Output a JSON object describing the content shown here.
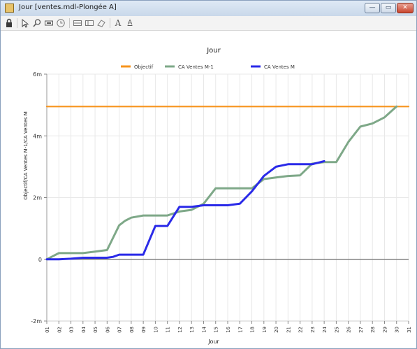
{
  "window": {
    "title": "Jour [ventes.mdl-Plongée A]",
    "controls": {
      "minimize": "—",
      "maximize": "▭",
      "close": "✕"
    }
  },
  "toolbar": {
    "icons": [
      "lock-icon",
      "pointer-icon",
      "zoom-icon",
      "fit-icon",
      "clock-icon",
      "table-icon",
      "list-icon",
      "eraser-icon",
      "font-a-icon",
      "font-a-small-icon"
    ],
    "font_a": "A",
    "font_a_small": "A"
  },
  "colors": {
    "objectif": "#f7941d",
    "ca_m1": "#7ea888",
    "ca_m": "#2a2ae8",
    "zero_line": "#808080",
    "grid": "#e8e8e8"
  },
  "chart_data": {
    "type": "line",
    "title": "Jour",
    "xlabel": "Jour",
    "ylabel": "Objectif/CA Ventes M-1/CA Ventes M",
    "x": [
      "01",
      "02",
      "03",
      "04",
      "05",
      "06",
      "07",
      "08",
      "09",
      "10",
      "11",
      "12",
      "13",
      "14",
      "15",
      "16",
      "17",
      "18",
      "19",
      "20",
      "21",
      "22",
      "23",
      "24",
      "25",
      "26",
      "27",
      "28",
      "29",
      "30",
      "31"
    ],
    "xlim": [
      1,
      31
    ],
    "ylim": [
      -2,
      6
    ],
    "y_ticks": [
      {
        "value": 6,
        "label": "6m"
      },
      {
        "value": 4,
        "label": "4m"
      },
      {
        "value": 2,
        "label": "2m"
      },
      {
        "value": 0,
        "label": "0"
      },
      {
        "value": -2,
        "label": "-2m"
      }
    ],
    "legend_position": "top",
    "grid": true,
    "series": [
      {
        "name": "Objectif",
        "color_key": "objectif",
        "x": [
          1,
          31
        ],
        "y": [
          4.95,
          4.95
        ]
      },
      {
        "name": "CA Ventes M-1",
        "color_key": "ca_m1",
        "x": [
          1,
          1.5,
          2,
          3,
          4,
          5,
          6,
          7,
          7.5,
          8,
          9,
          10,
          10.5,
          11,
          12,
          13,
          14,
          15,
          16,
          17,
          18,
          19,
          20,
          21,
          22,
          23,
          24,
          25,
          26,
          27,
          28,
          29,
          30
        ],
        "y": [
          0,
          0.1,
          0.2,
          0.2,
          0.2,
          0.25,
          0.3,
          1.1,
          1.25,
          1.35,
          1.42,
          1.42,
          1.42,
          1.42,
          1.55,
          1.6,
          1.8,
          2.3,
          2.3,
          2.3,
          2.3,
          2.6,
          2.65,
          2.7,
          2.72,
          3.1,
          3.15,
          3.15,
          3.8,
          4.3,
          4.4,
          4.6,
          4.95
        ]
      },
      {
        "name": "CA Ventes M",
        "color_key": "ca_m",
        "x": [
          1,
          2,
          3,
          4,
          5,
          6,
          6.5,
          7,
          8,
          9,
          10,
          11,
          12,
          13,
          14,
          15,
          16,
          17,
          18,
          19,
          20,
          21,
          22,
          23,
          24
        ],
        "y": [
          0,
          0,
          0.02,
          0.05,
          0.05,
          0.05,
          0.08,
          0.15,
          0.15,
          0.15,
          1.08,
          1.08,
          1.7,
          1.7,
          1.75,
          1.75,
          1.75,
          1.8,
          2.2,
          2.7,
          3.0,
          3.08,
          3.08,
          3.08,
          3.18
        ]
      }
    ]
  }
}
